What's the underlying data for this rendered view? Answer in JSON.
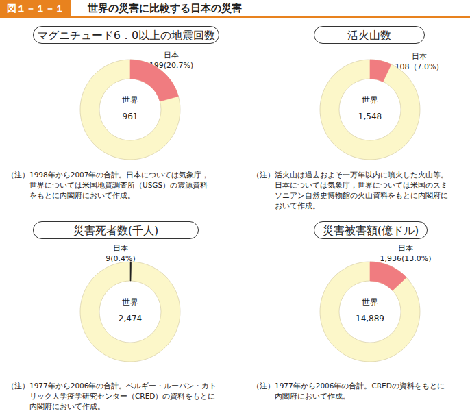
{
  "header": {
    "figure": "図１－１－１",
    "title": "世界の災害に比較する日本の災害"
  },
  "chart_data": [
    {
      "type": "pie",
      "title": "マグニチュード6．0以上の地震回数",
      "world": {
        "label": "世界",
        "value": 961,
        "value_label": "961",
        "color": "#fcf7c9"
      },
      "japan": {
        "label": "日本",
        "value": 199,
        "value_label": "199(20.7%)",
        "color": "#f07c80"
      },
      "note": {
        "prefix": "（注）",
        "lines": [
          "1998年から2007年の合計。日本については気象庁，",
          "世界については米国地質調査所（USGS）の震源資料",
          "をもとに内閣府において作成。"
        ]
      }
    },
    {
      "type": "pie",
      "title": "活火山数",
      "world": {
        "label": "世界",
        "value": 1548,
        "value_label": "1,548",
        "color": "#fcf7c9"
      },
      "japan": {
        "label": "日本",
        "value": 108,
        "value_label": "108（7.0%）",
        "color": "#f07c80"
      },
      "note": {
        "prefix": "（注）",
        "lines": [
          "活火山は過去およそ一万年以内に噴火した火山等。",
          "日本については気象庁，世界については米国のスミ",
          "ソニアン自然史博物館の火山資料をもとに内閣府に",
          "おいて作成。"
        ]
      }
    },
    {
      "type": "pie",
      "title": "災害死者数(千人)",
      "world": {
        "label": "世界",
        "value": 2474,
        "value_label": "2,474",
        "color": "#fcf7c9"
      },
      "japan": {
        "label": "日本",
        "value": 9,
        "value_label": "9(0.4%)",
        "color": "#222222"
      },
      "note": {
        "prefix": "（注）",
        "lines": [
          "1977年から2006年の合計。ベルギー・ルーバン・カト",
          "リック大学疫学研究センター（CRED）の資料をもとに",
          "内閣府において作成。"
        ]
      }
    },
    {
      "type": "pie",
      "title": "災害被害額(億ドル)",
      "world": {
        "label": "世界",
        "value": 14889,
        "value_label": "14,889",
        "color": "#fcf7c9"
      },
      "japan": {
        "label": "日本",
        "value": 1936,
        "value_label": "1,936(13.0%)",
        "color": "#f07c80"
      },
      "note": {
        "prefix": "（注）",
        "lines": [
          "1977年から2006年の合計。CREDの資料をもとに",
          "内閣府において作成。"
        ]
      }
    }
  ]
}
